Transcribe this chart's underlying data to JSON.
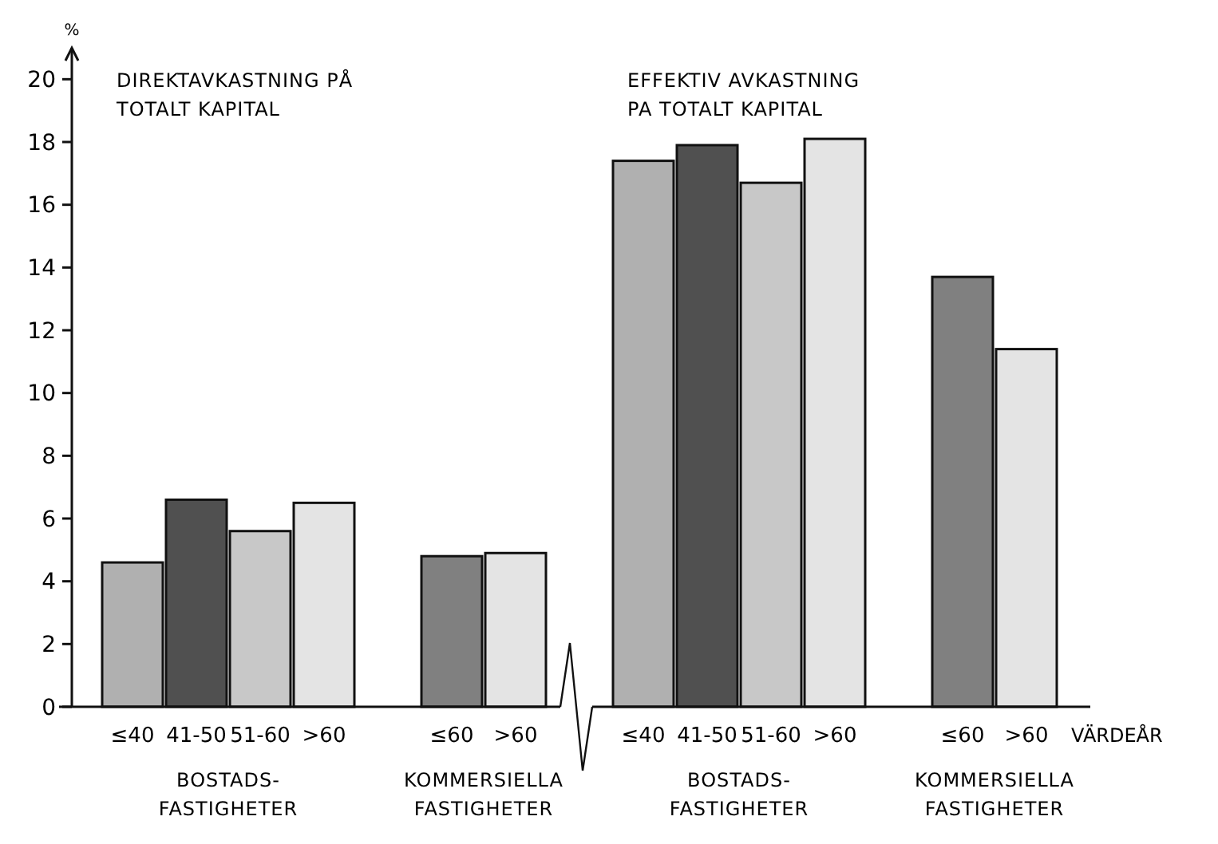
{
  "chart_data": {
    "type": "bar",
    "ylabel": "%",
    "xlabel": "VÄRDEÅR",
    "categories": [
      "≤40",
      "41-50",
      "51-60",
      ">60",
      null,
      "≤60",
      ">60",
      null,
      "≤40",
      "41-50",
      "51-60",
      ">60",
      null,
      "≤60",
      ">60"
    ],
    "values": [
      4.6,
      6.6,
      5.6,
      6.5,
      null,
      4.8,
      4.9,
      null,
      17.4,
      17.9,
      16.7,
      18.1,
      null,
      13.7,
      11.4
    ],
    "colors": [
      "#b0b0b0",
      "#505050",
      "#c8c8c8",
      "#e4e4e4",
      null,
      "#808080",
      "#e4e4e4",
      null,
      "#b0b0b0",
      "#505050",
      "#c8c8c8",
      "#e4e4e4",
      null,
      "#808080",
      "#e4e4e4"
    ],
    "ylim": [
      0,
      21
    ],
    "yticks": [
      0,
      2,
      4,
      6,
      8,
      10,
      12,
      14,
      16,
      18,
      20
    ],
    "grid": false,
    "annotations": [
      "DIREKTAVKASTNING PÅ\nTOTALT KAPITAL",
      "EFFEKTIV AVKASTNING\nPA TOTALT KAPITAL",
      "BOSTADS-\nFASTIGHETER",
      "KOMMERSIELLA\nFASTIGHETER",
      "BOSTADS-\nFASTIGHETER",
      "KOMMERSIELLA\nFASTIGHETER"
    ]
  }
}
